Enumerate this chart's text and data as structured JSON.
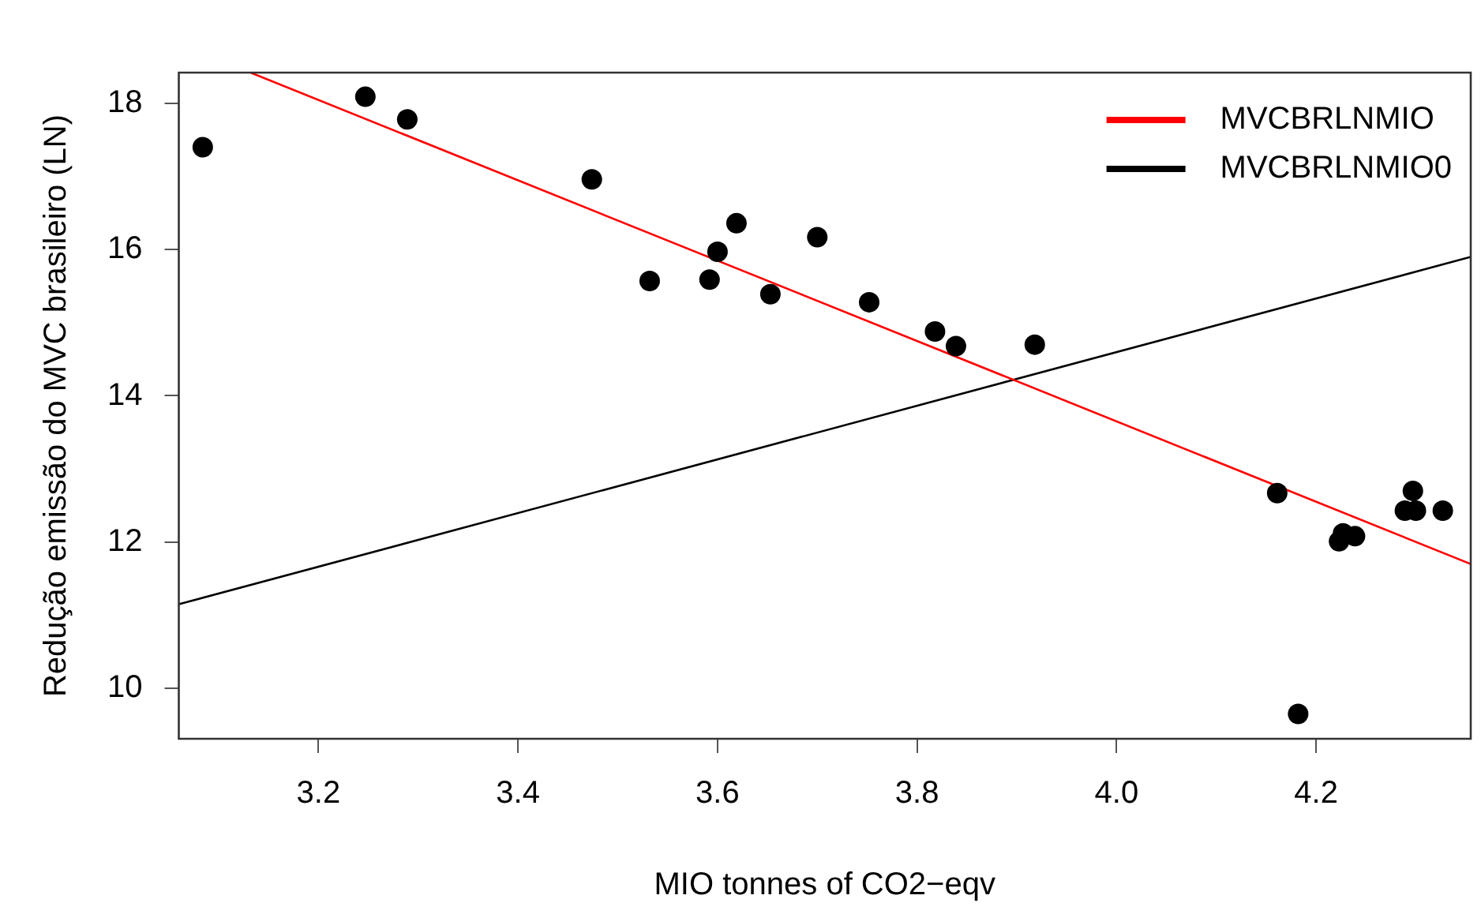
{
  "chart_data": {
    "type": "scatter",
    "xlabel": "MIO tonnes of CO2−eqv",
    "ylabel": "Redução emissão do MVC brasileiro (LN)",
    "xlim": [
      3.06,
      4.355
    ],
    "ylim": [
      9.31,
      18.42
    ],
    "xticks": [
      3.2,
      3.4,
      3.6,
      3.8,
      {
        "value": 4,
        "label": "4.0"
      },
      4.2
    ],
    "yticks": [
      10,
      12,
      14,
      16,
      18
    ],
    "grid": false,
    "legend": "top right",
    "series": [
      {
        "marker": "circle",
        "color": "#000000",
        "x": [
          3.084,
          3.247,
          3.289,
          3.474,
          3.532,
          3.592,
          3.6,
          3.619,
          3.653,
          3.7,
          3.752,
          3.818,
          3.839,
          3.918,
          4.161,
          4.182,
          4.223,
          4.227,
          4.239,
          4.289,
          4.297,
          4.3,
          4.327
        ],
        "values": [
          17.4,
          18.09,
          17.78,
          16.96,
          15.57,
          15.59,
          15.97,
          16.36,
          15.39,
          16.17,
          15.28,
          14.88,
          14.68,
          14.7,
          12.67,
          9.65,
          12.01,
          12.12,
          12.08,
          12.43,
          12.7,
          12.43,
          12.43
        ]
      },
      {
        "type": "line",
        "name": "MVCBRLNMIO",
        "color": "#ff0000",
        "x": [
          3.132,
          4.355
        ],
        "values": [
          18.42,
          11.7
        ]
      },
      {
        "type": "line",
        "name": "MVCBRLNMIO0",
        "color": "#000000",
        "x": [
          3.06,
          4.355
        ],
        "values": [
          11.15,
          15.9
        ]
      }
    ]
  }
}
